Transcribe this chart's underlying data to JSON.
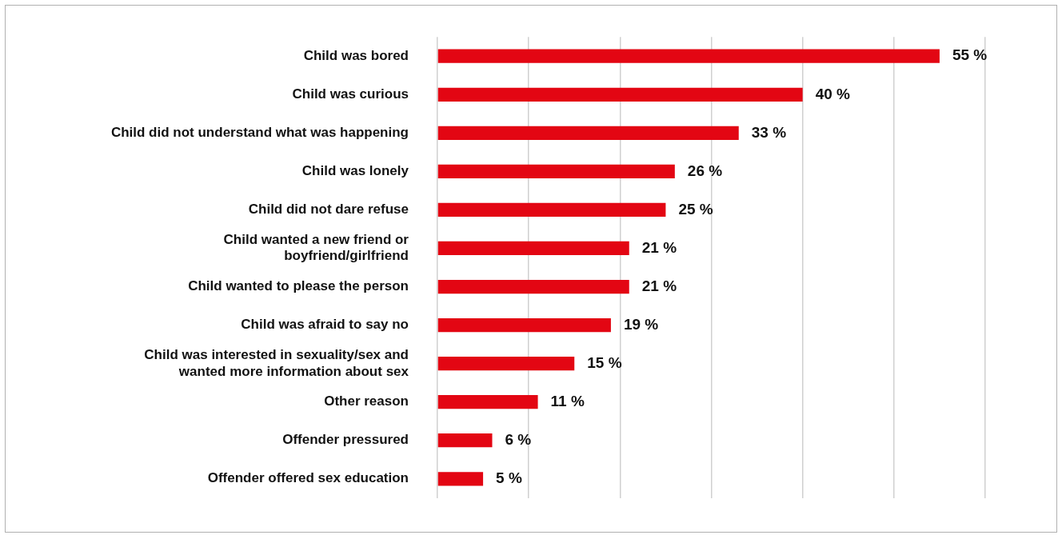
{
  "chart_data": {
    "type": "bar",
    "orientation": "horizontal",
    "categories": [
      "Child was bored",
      "Child was curious",
      "Child did not understand what was happening",
      "Child was lonely",
      "Child did not dare refuse",
      "Child wanted a new friend or\nboyfriend/girlfriend",
      "Child wanted to please the person",
      "Child was afraid to say no",
      "Child was interested in sexuality/sex and\nwanted more information about sex",
      "Other reason",
      "Offender pressured",
      "Offender offered sex education"
    ],
    "values": [
      55,
      40,
      33,
      26,
      25,
      21,
      21,
      19,
      15,
      11,
      6,
      5
    ],
    "value_labels": [
      "55 %",
      "40 %",
      "33 %",
      "26 %",
      "25 %",
      "21 %",
      "21 %",
      "19 %",
      "15 %",
      "11 %",
      "6 %",
      "5 %"
    ],
    "color": "#e30613",
    "xlim": [
      0,
      60
    ],
    "xticks": [
      {
        "value": 0,
        "label": null
      },
      {
        "value": 10,
        "label": null
      },
      {
        "value": 20,
        "label": null
      },
      {
        "value": 30,
        "label": null
      },
      {
        "value": 40,
        "label": null
      },
      {
        "value": 50,
        "label": null
      },
      {
        "value": 60,
        "label": null
      }
    ],
    "tick_labels": "y",
    "grid": "x",
    "legend": false
  }
}
